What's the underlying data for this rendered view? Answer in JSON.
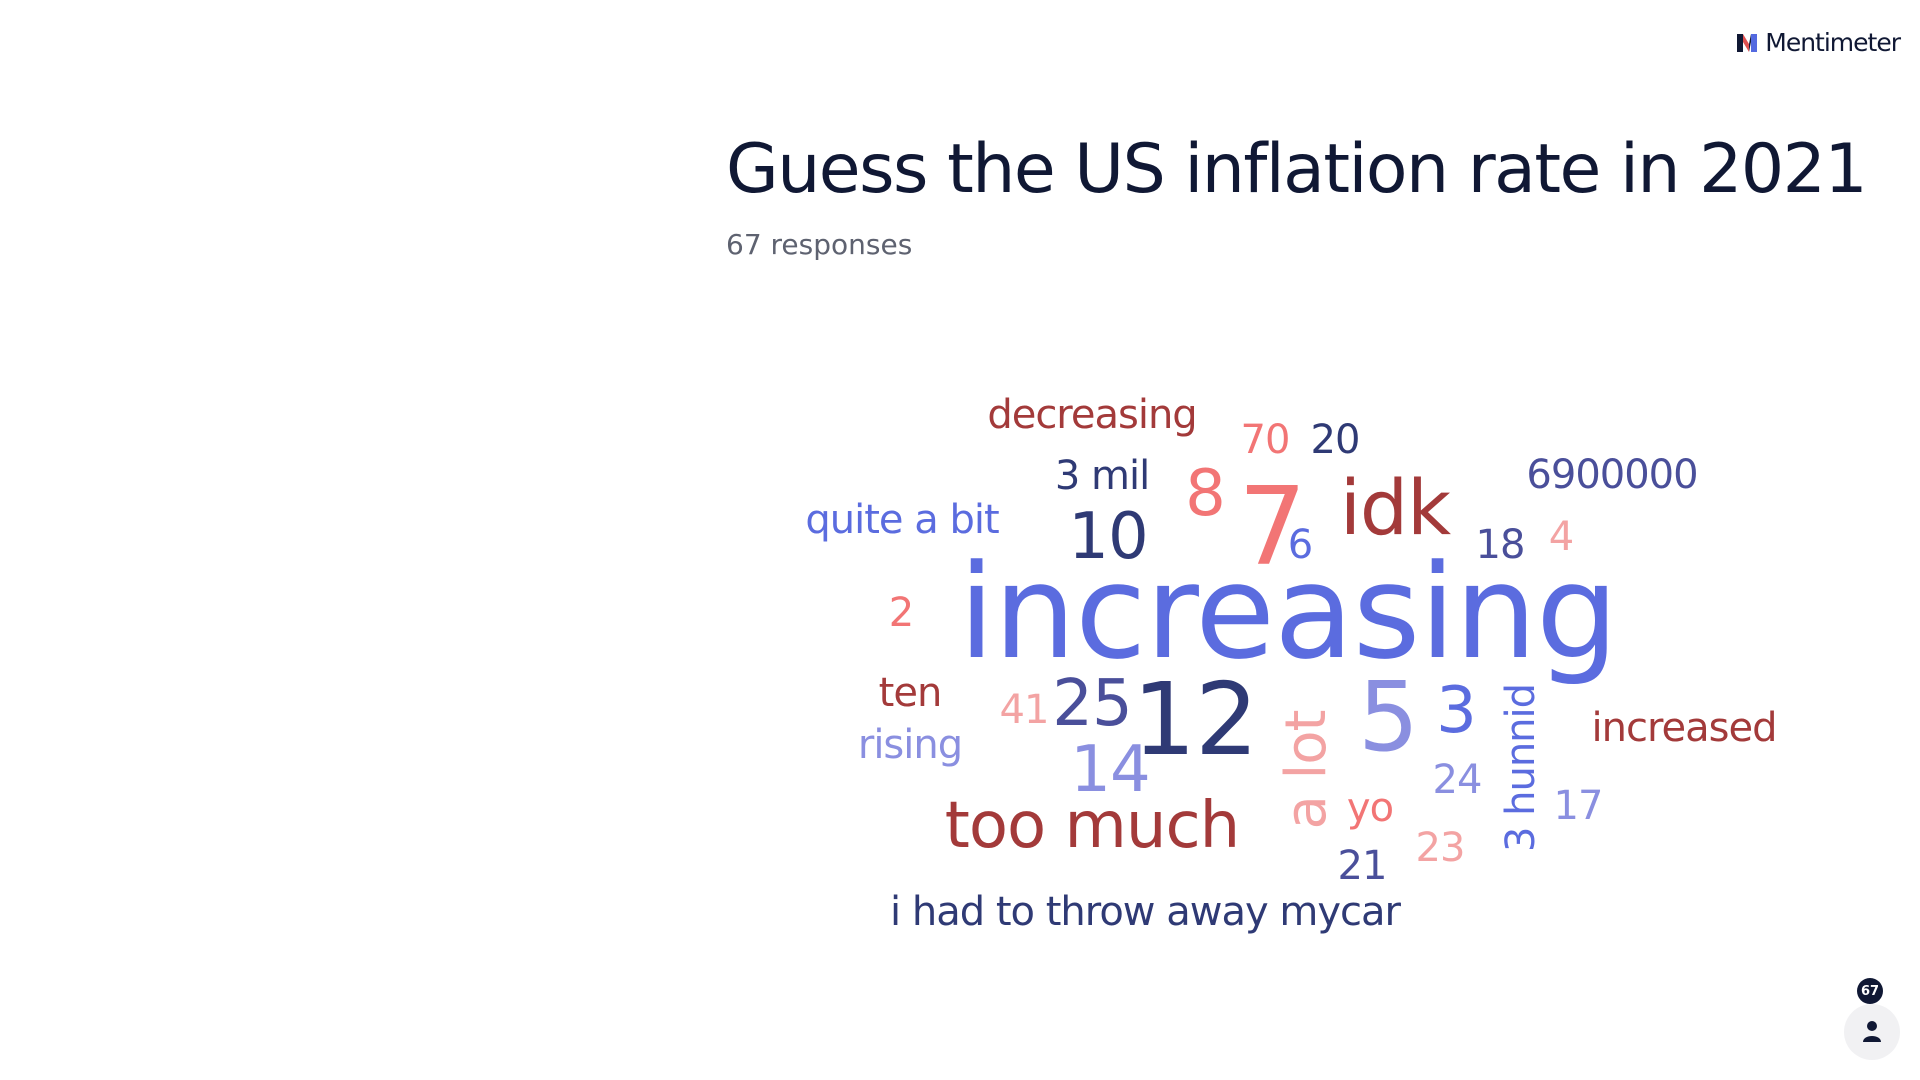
{
  "brand": {
    "name": "Mentimeter",
    "colors": {
      "dark": "#101834",
      "blue": "#5369e0",
      "red": "#e05050"
    }
  },
  "question": {
    "title": "Guess the US inflation rate in 2021",
    "responses_text": "67 responses"
  },
  "participants": {
    "count": "67",
    "icon": "person-icon"
  },
  "word_cloud": {
    "palette": {
      "blue": "#5b6cdf",
      "navy": "#2f3a75",
      "indigo": "#4a4f9a",
      "lavender": "#8a8fe0",
      "salmon": "#f27575",
      "pink": "#f3a3a3",
      "maroon": "#a33a3a"
    },
    "words": [
      {
        "text": "increasing",
        "color": "#5b6cdf",
        "size": 130
      },
      {
        "text": "7",
        "color": "#f27575",
        "size": 108
      },
      {
        "text": "idk",
        "color": "#a33a3a",
        "size": 76
      },
      {
        "text": "12",
        "color": "#2f3a75",
        "size": 100
      },
      {
        "text": "5",
        "color": "#8a8fe0",
        "size": 96
      },
      {
        "text": "too much",
        "color": "#a33a3a",
        "size": 64
      },
      {
        "text": "a lot",
        "color": "#f3a3a3",
        "size": 56,
        "vertical": true
      },
      {
        "text": "decreasing",
        "color": "#a33a3a",
        "size": 40
      },
      {
        "text": "70",
        "color": "#f27575",
        "size": 40
      },
      {
        "text": "20",
        "color": "#2f3a75",
        "size": 40
      },
      {
        "text": "6900000",
        "color": "#4a4f9a",
        "size": 40
      },
      {
        "text": "3 mil",
        "color": "#2f3a75",
        "size": 40
      },
      {
        "text": "8",
        "color": "#f27575",
        "size": 64
      },
      {
        "text": "quite a bit",
        "color": "#5b6cdf",
        "size": 40
      },
      {
        "text": "10",
        "color": "#2f3a75",
        "size": 64
      },
      {
        "text": "6",
        "color": "#5b6cdf",
        "size": 40
      },
      {
        "text": "18",
        "color": "#4a4f9a",
        "size": 40
      },
      {
        "text": "4",
        "color": "#f3a3a3",
        "size": 40
      },
      {
        "text": "2",
        "color": "#f27575",
        "size": 40
      },
      {
        "text": "ten",
        "color": "#a33a3a",
        "size": 40
      },
      {
        "text": "41",
        "color": "#f3a3a3",
        "size": 40
      },
      {
        "text": "25",
        "color": "#4a4f9a",
        "size": 64
      },
      {
        "text": "3",
        "color": "#5b6cdf",
        "size": 64
      },
      {
        "text": "3 hunnid",
        "color": "#5b6cdf",
        "size": 40,
        "vertical": true
      },
      {
        "text": "increased",
        "color": "#a33a3a",
        "size": 40
      },
      {
        "text": "rising",
        "color": "#8a8fe0",
        "size": 40
      },
      {
        "text": "14",
        "color": "#8a8fe0",
        "size": 64
      },
      {
        "text": "24",
        "color": "#8a8fe0",
        "size": 40
      },
      {
        "text": "yo",
        "color": "#f27575",
        "size": 40
      },
      {
        "text": "17",
        "color": "#8a8fe0",
        "size": 40
      },
      {
        "text": "23",
        "color": "#f3a3a3",
        "size": 40
      },
      {
        "text": "21",
        "color": "#4a4f9a",
        "size": 40
      },
      {
        "text": "i had to throw away mycar",
        "color": "#2f3a75",
        "size": 40
      }
    ]
  }
}
